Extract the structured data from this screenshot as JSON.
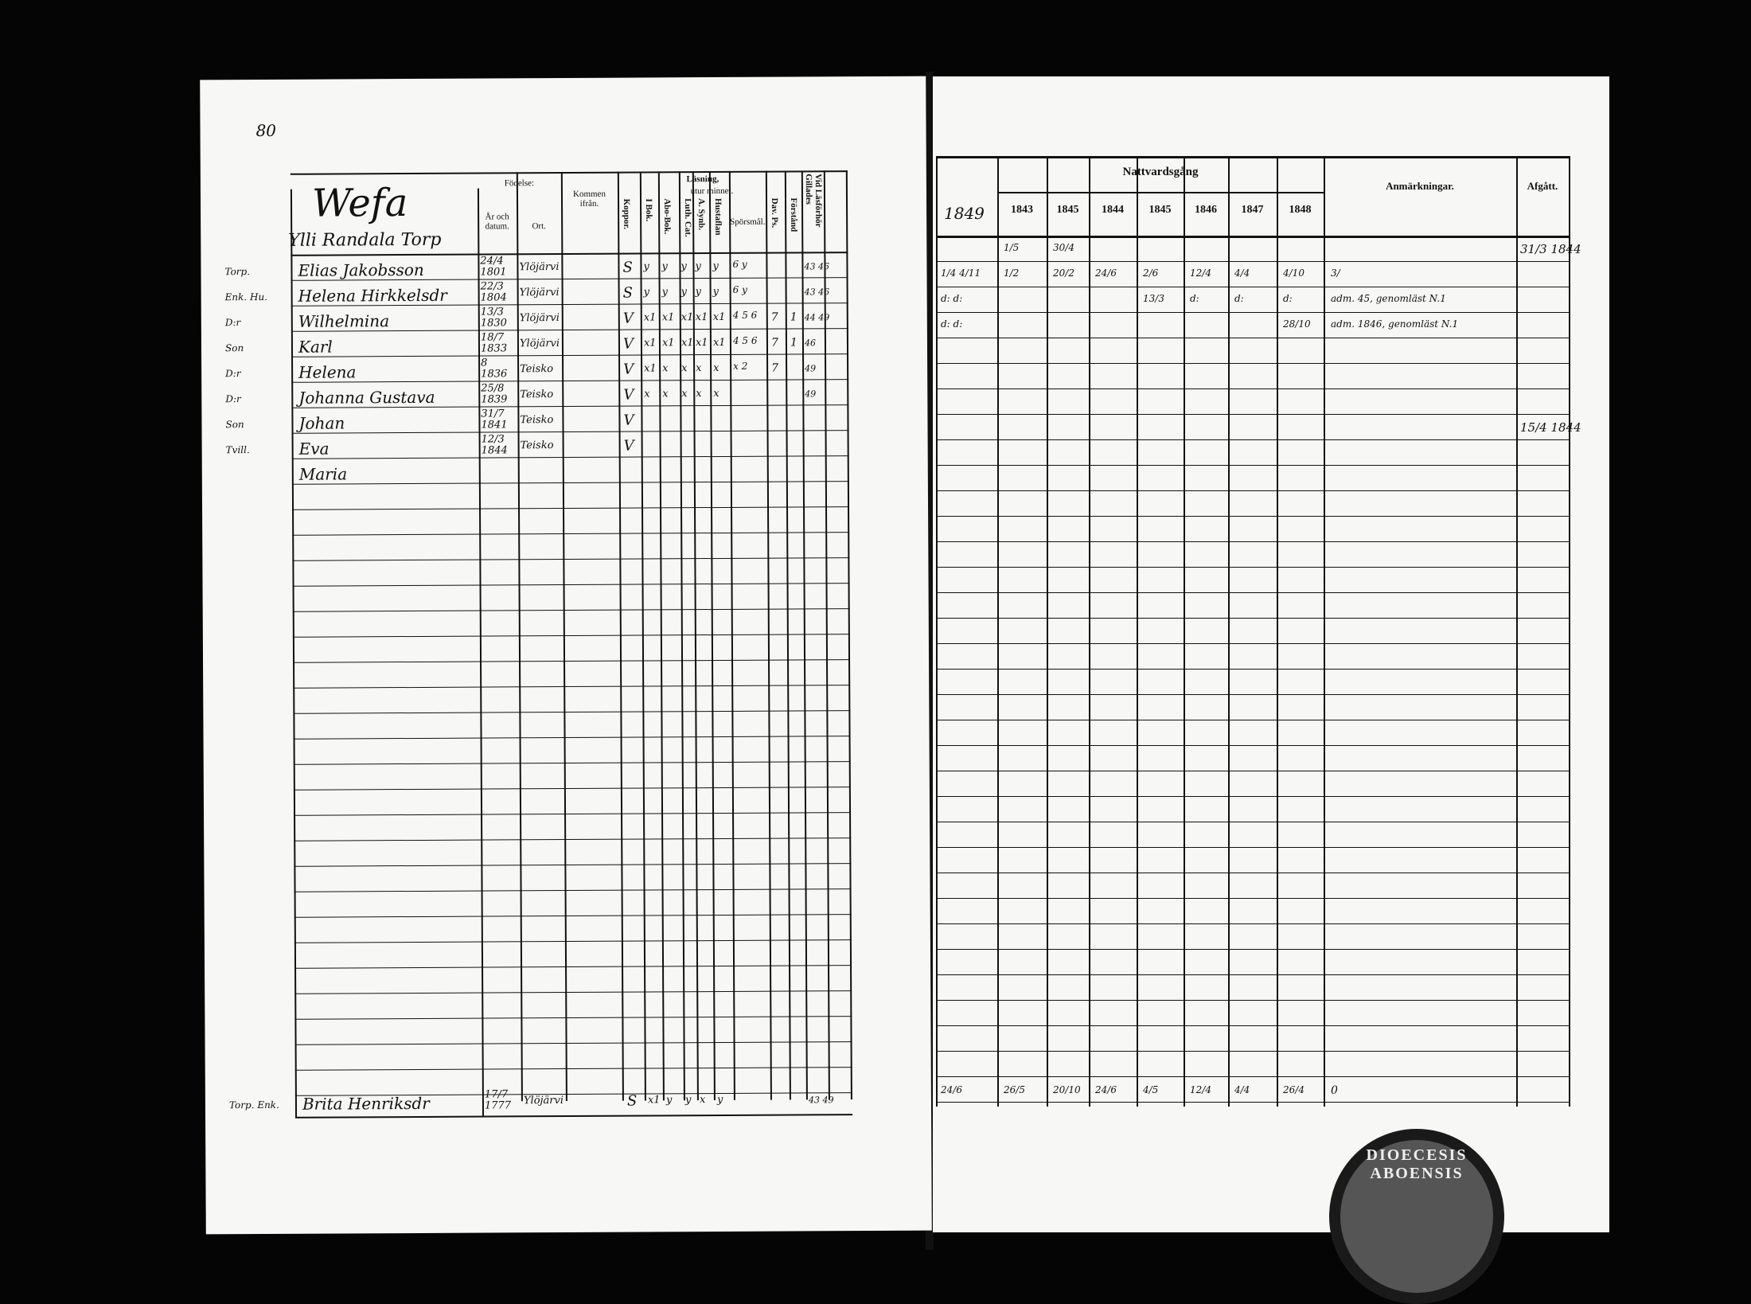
{
  "left_page": {
    "page_number": "80",
    "farm_title": "Wefa",
    "farm_subtitle": "Ylli Randala Torp",
    "headers": {
      "birth": "Födelse:",
      "year_date": "År och datum.",
      "place": "Ort.",
      "came_from": "Kommen ifrån.",
      "smallpox": "Koppor.",
      "reading": "Läsning,",
      "by_heart": "utur minnet.",
      "in_book": "I Bok.",
      "abo_book": "Abo-Bok.",
      "luth_cat": "Luth. Cat.",
      "synb": "A. Synb.",
      "hustaflan": "Hustaflan",
      "questions": "Spörsmål.",
      "dav_ps": "Dav. Ps.",
      "understanding": "Förstånd",
      "approved": "Vid Läsförhör Gillades"
    },
    "persons": [
      {
        "role": "Torp.",
        "name": "Elias Jakobsson",
        "birth": "24/4 1801",
        "place": "Ylöjärvi",
        "smallpox": "S",
        "marks": [
          "y",
          "y",
          "y",
          "y",
          "y"
        ],
        "questions": "6 y",
        "dav": "",
        "und": "",
        "approved": "43 46"
      },
      {
        "role": "Enk. Hu.",
        "name": "Helena Hirkkelsdr",
        "birth": "22/3 1804",
        "place": "Ylöjärvi",
        "smallpox": "S",
        "marks": [
          "y",
          "y",
          "y",
          "y",
          "y"
        ],
        "questions": "6 y",
        "dav": "",
        "und": "",
        "approved": "43 46"
      },
      {
        "role": "D:r",
        "name": "Wilhelmina",
        "birth": "13/3 1830",
        "place": "Ylöjärvi",
        "smallpox": "V",
        "marks": [
          "x1",
          "x1",
          "x1",
          "x1",
          "x1"
        ],
        "questions": "4 5 6",
        "dav": "7",
        "und": "1",
        "approved": "44 49"
      },
      {
        "role": "Son",
        "name": "Karl",
        "birth": "18/7 1833",
        "place": "Ylöjärvi",
        "smallpox": "V",
        "marks": [
          "x1",
          "x1",
          "x1",
          "x1",
          "x1"
        ],
        "questions": "4 5 6",
        "dav": "7",
        "und": "1",
        "approved": "46"
      },
      {
        "role": "D:r",
        "name": "Helena",
        "birth": "8 1836",
        "place": "Teisko",
        "smallpox": "V",
        "marks": [
          "x1",
          "x",
          "x",
          "x",
          "x"
        ],
        "questions": "x 2",
        "dav": "7",
        "und": "",
        "approved": "49"
      },
      {
        "role": "D:r",
        "name": "Johanna Gustava",
        "birth": "25/8 1839",
        "place": "Teisko",
        "smallpox": "V",
        "marks": [
          "x",
          "x",
          "x",
          "x",
          "x"
        ],
        "questions": "",
        "dav": "",
        "und": "",
        "approved": "49"
      },
      {
        "role": "Son",
        "name": "Johan",
        "birth": "31/7 1841",
        "place": "Teisko",
        "smallpox": "V",
        "marks": [
          "",
          "",
          "",
          "",
          ""
        ],
        "questions": "",
        "dav": "",
        "und": "",
        "approved": ""
      },
      {
        "role": "Tvill.",
        "name": "Eva",
        "birth": "12/3 1844",
        "place": "Teisko",
        "smallpox": "V",
        "marks": [
          "",
          "",
          "",
          "",
          ""
        ],
        "questions": "",
        "dav": "",
        "und": "",
        "approved": ""
      },
      {
        "role": "",
        "name": "Maria",
        "birth": "",
        "place": "",
        "smallpox": "",
        "marks": [
          "",
          "",
          "",
          "",
          ""
        ],
        "questions": "",
        "dav": "",
        "und": "",
        "approved": ""
      }
    ],
    "bottom_person": {
      "role": "Torp. Enk.",
      "name": "Brita Henriksdr",
      "birth": "17/7 1777",
      "place": "Ylöjärvi",
      "smallpox": "S",
      "marks": [
        "x1",
        "y",
        "y",
        "x",
        "y"
      ],
      "questions": "",
      "approved": "43 49"
    }
  },
  "right_page": {
    "communion_header": "Nattvardsgång",
    "first_year": "1849",
    "years": [
      "1843",
      "1845",
      "1844",
      "1845",
      "1846",
      "1847",
      "1848"
    ],
    "remarks_header": "Anmärkningar.",
    "departed_header": "Afgått.",
    "rows": [
      {
        "pre": "",
        "dates": [
          "1/5",
          "30/4",
          "",
          "",
          "",
          "",
          "",
          ""
        ],
        "remark": "",
        "departed": "31/3 1844"
      },
      {
        "pre": "1/4 4/11",
        "dates": [
          "1/2",
          "20/2",
          "24/6",
          "2/6",
          "12/4",
          "4/4",
          "4/10",
          ""
        ],
        "remark": "3/",
        "departed": ""
      },
      {
        "pre": "d: d:",
        "dates": [
          "",
          "",
          "",
          "13/3",
          "d:",
          "d:",
          "d:",
          ""
        ],
        "remark": "adm. 45, genomläst N.1",
        "departed": ""
      },
      {
        "pre": "d: d:",
        "dates": [
          "",
          "",
          "",
          "",
          "",
          "",
          "28/10",
          ""
        ],
        "remark": "adm. 1846, genomläst N.1",
        "departed": ""
      },
      {
        "pre": "",
        "dates": [
          "",
          "",
          "",
          "",
          "",
          "",
          "",
          ""
        ],
        "remark": "",
        "departed": ""
      },
      {
        "pre": "",
        "dates": [
          "",
          "",
          "",
          "",
          "",
          "",
          "",
          ""
        ],
        "remark": "",
        "departed": ""
      },
      {
        "pre": "",
        "dates": [
          "",
          "",
          "",
          "",
          "",
          "",
          "",
          ""
        ],
        "remark": "",
        "departed": ""
      },
      {
        "pre": "",
        "dates": [
          "",
          "",
          "",
          "",
          "",
          "",
          "",
          ""
        ],
        "remark": "",
        "departed": "15/4 1844"
      }
    ],
    "bottom_row": {
      "pre": "24/6",
      "dates": [
        "26/5",
        "20/10",
        "24/6",
        "4/5",
        "12/4",
        "4/4",
        "26/4"
      ],
      "remark": "0"
    },
    "stamp_text": "DIOECESIS ABOENSIS"
  }
}
